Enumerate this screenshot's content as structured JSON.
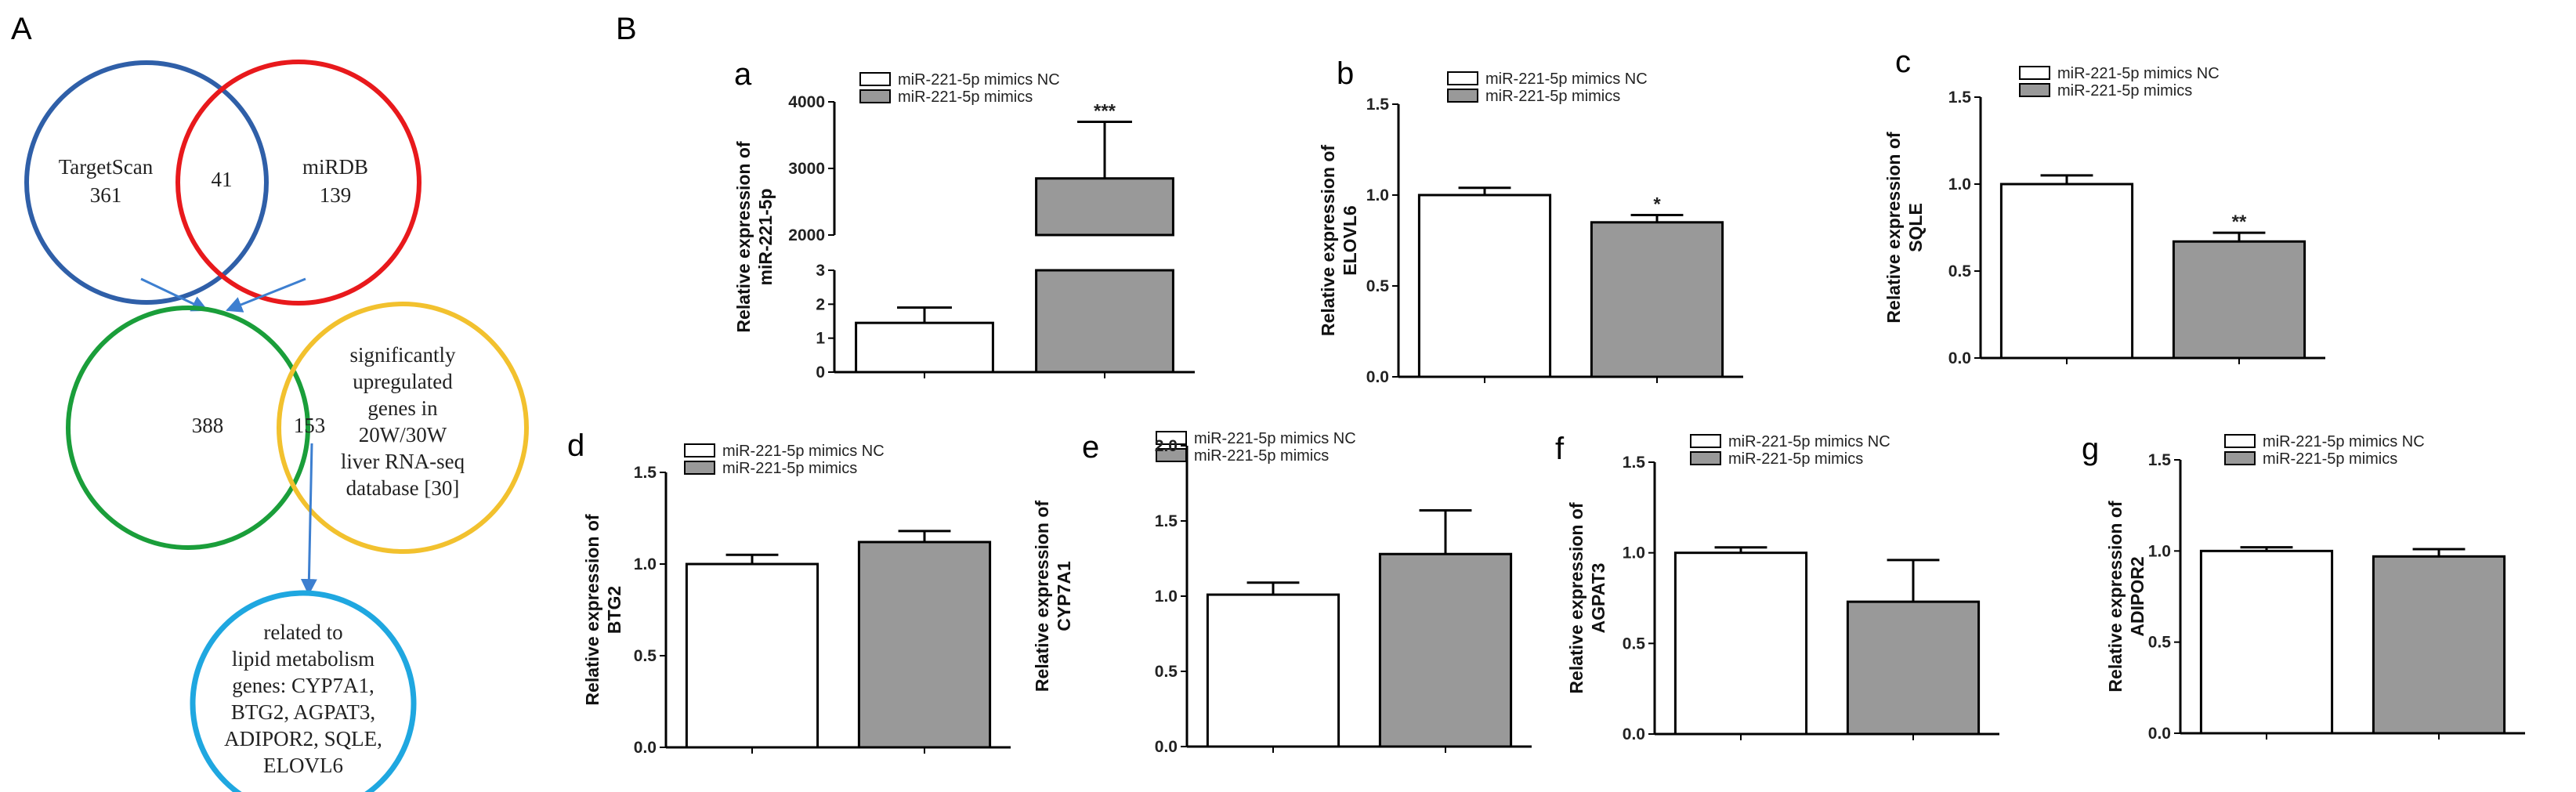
{
  "labels": {
    "panel_A": "A",
    "panel_B": "B"
  },
  "venn": {
    "targetscan": {
      "name": "TargetScan",
      "count": "361"
    },
    "overlap_top": "41",
    "mirdb": {
      "name": "miRDB",
      "count": "139"
    },
    "left_count": "388",
    "overlap_mid": "153",
    "upregulated_lines": [
      "significantly",
      "upregulated",
      "genes in",
      "20W/30W",
      "liver RNA-seq",
      "database [30]"
    ],
    "related_lines": [
      "related to",
      "lipid metabolism",
      "genes: CYP7A1,",
      "BTG2, AGPAT3,",
      "ADIPOR2, SQLE,",
      "ELOVL6"
    ]
  },
  "colors": {
    "blue": "#2f5fa8",
    "red": "#e8191c",
    "green": "#1a9e3a",
    "yellow": "#f2c12e",
    "cyan": "#1fa7e0",
    "arrow": "#3d7fd0",
    "bar_nc": "#ffffff",
    "bar_mimics": "#999999"
  },
  "legend": {
    "nc": "miR-221-5p mimics NC",
    "mimics": "miR-221-5p mimics"
  },
  "chart_data": [
    {
      "id": "a",
      "type": "bar",
      "broken_axis": true,
      "categories": [
        "miR-221-5p mimics NC",
        "miR-221-5p mimics"
      ],
      "values": [
        1.45,
        2850
      ],
      "errors": [
        0.45,
        850
      ],
      "significance": [
        "",
        "***"
      ],
      "ylabel_lines": [
        "Relative expression of",
        "miR-221-5p"
      ],
      "lower_ylim": [
        0,
        3
      ],
      "lower_ticks": [
        "0",
        "1",
        "2",
        "3"
      ],
      "upper_ylim": [
        2000,
        4000
      ],
      "upper_ticks": [
        "2000",
        "3000",
        "4000"
      ]
    },
    {
      "id": "b",
      "type": "bar",
      "categories": [
        "miR-221-5p mimics NC",
        "miR-221-5p mimics"
      ],
      "values": [
        1.0,
        0.85
      ],
      "errors": [
        0.04,
        0.04
      ],
      "significance": [
        "",
        "*"
      ],
      "ylabel_lines": [
        "Relative expression of",
        "ELOVL6"
      ],
      "ylim": [
        0,
        1.5
      ],
      "ticks": [
        "0.0",
        "0.5",
        "1.0",
        "1.5"
      ]
    },
    {
      "id": "c",
      "type": "bar",
      "categories": [
        "miR-221-5p mimics NC",
        "miR-221-5p mimics"
      ],
      "values": [
        1.0,
        0.67
      ],
      "errors": [
        0.05,
        0.05
      ],
      "significance": [
        "",
        "**"
      ],
      "ylabel_lines": [
        "Relative expression of",
        "SQLE"
      ],
      "ylim": [
        0,
        1.5
      ],
      "ticks": [
        "0.0",
        "0.5",
        "1.0",
        "1.5"
      ]
    },
    {
      "id": "d",
      "type": "bar",
      "categories": [
        "miR-221-5p mimics NC",
        "miR-221-5p mimics"
      ],
      "values": [
        1.0,
        1.12
      ],
      "errors": [
        0.05,
        0.06
      ],
      "significance": [
        "",
        ""
      ],
      "ylabel_lines": [
        "Relative expression of",
        "BTG2"
      ],
      "ylim": [
        0,
        1.5
      ],
      "ticks": [
        "0.0",
        "0.5",
        "1.0",
        "1.5"
      ]
    },
    {
      "id": "e",
      "type": "bar",
      "categories": [
        "miR-221-5p mimics NC",
        "miR-221-5p mimics"
      ],
      "values": [
        1.01,
        1.28
      ],
      "errors": [
        0.08,
        0.29
      ],
      "significance": [
        "",
        ""
      ],
      "ylabel_lines": [
        "Relative expression of",
        "CYP7A1"
      ],
      "ylim": [
        0,
        2.0
      ],
      "ticks": [
        "0.0",
        "0.5",
        "1.0",
        "1.5",
        "2.0"
      ]
    },
    {
      "id": "f",
      "type": "bar",
      "categories": [
        "miR-221-5p mimics NC",
        "miR-221-5p mimics"
      ],
      "values": [
        1.0,
        0.73
      ],
      "errors": [
        0.03,
        0.23
      ],
      "significance": [
        "",
        ""
      ],
      "ylabel_lines": [
        "Relative expression of",
        "AGPAT3"
      ],
      "ylim": [
        0,
        1.5
      ],
      "ticks": [
        "0.0",
        "0.5",
        "1.0",
        "1.5"
      ]
    },
    {
      "id": "g",
      "type": "bar",
      "categories": [
        "miR-221-5p mimics NC",
        "miR-221-5p mimics"
      ],
      "values": [
        1.0,
        0.97
      ],
      "errors": [
        0.02,
        0.04
      ],
      "significance": [
        "",
        ""
      ],
      "ylabel_lines": [
        "Relative expression of",
        "ADIPOR2"
      ],
      "ylim": [
        0,
        1.5
      ],
      "ticks": [
        "0.0",
        "0.5",
        "1.0",
        "1.5"
      ]
    }
  ]
}
